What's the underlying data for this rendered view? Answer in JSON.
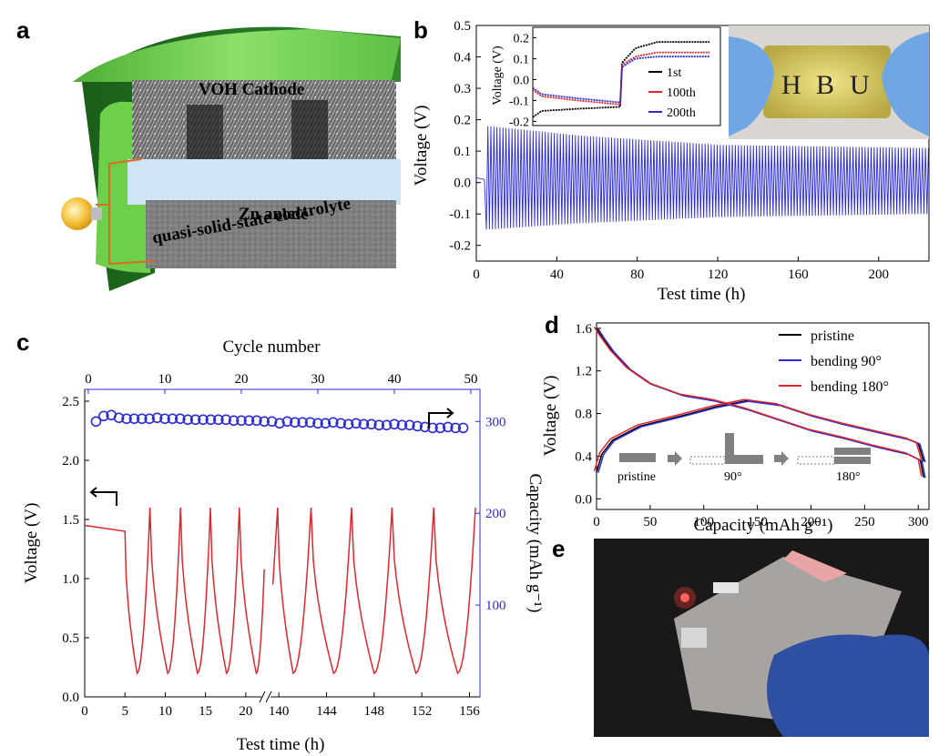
{
  "panels": {
    "a": "a",
    "b": "b",
    "c": "c",
    "d": "d",
    "e": "e"
  },
  "schematic": {
    "cathode_label": "VOH Cathode",
    "electrolyte_label": "quasi-solid-state electrolyte",
    "anode_label": "Zn anode"
  },
  "photo_b": {
    "letters": [
      "H",
      "B",
      "U"
    ]
  },
  "colors": {
    "blue": "#2b2bd6",
    "red": "#e0262e",
    "black": "#000000",
    "green": "#7bd55a",
    "gray_block": "#808080",
    "axis_blue": "#1c1cb0"
  },
  "chart_data": [
    {
      "id": "b-main",
      "type": "line",
      "xlabel": "Test time (h)",
      "ylabel": "Voltage (V)",
      "xlim": [
        0,
        225
      ],
      "ylim": [
        -0.25,
        0.5
      ],
      "xticks": [
        0,
        40,
        80,
        120,
        160,
        200
      ],
      "yticks": [
        -0.2,
        -0.1,
        0.0,
        0.1,
        0.2,
        0.3,
        0.4,
        0.5
      ],
      "xticklabels": [
        "0",
        "40",
        "80",
        "120",
        "160",
        "200"
      ],
      "yticklabels": [
        "-0.2",
        "-0.1",
        "0.0",
        "0.1",
        "0.2",
        "0.3",
        "0.4",
        "0.5"
      ],
      "series": [
        {
          "color": "#2b2bd6",
          "cycle_period_h": 1.5,
          "upper_envelope": [
            [
              5,
              0.18
            ],
            [
              50,
              0.15
            ],
            [
              120,
              0.12
            ],
            [
              225,
              0.11
            ]
          ],
          "lower_envelope": [
            [
              5,
              -0.15
            ],
            [
              50,
              -0.13
            ],
            [
              120,
              -0.11
            ],
            [
              225,
              -0.1
            ]
          ]
        }
      ],
      "grid": false
    },
    {
      "id": "b-inset",
      "type": "line",
      "ylabel": "Voltage (V)",
      "ylim": [
        -0.22,
        0.25
      ],
      "yticks": [
        -0.2,
        -0.1,
        0.0,
        0.1,
        0.2
      ],
      "yticklabels": [
        "-0.2",
        "-0.1",
        "0.0",
        "0.1",
        "0.2"
      ],
      "legend_position": "bottom-right",
      "series": [
        {
          "name": "1st",
          "color": "#000000",
          "discharge": [
            [
              0,
              -0.18
            ],
            [
              0.1,
              -0.15
            ],
            [
              0.5,
              -0.14
            ],
            [
              1.0,
              -0.13
            ]
          ],
          "charge": [
            [
              1.0,
              0.08
            ],
            [
              1.15,
              0.15
            ],
            [
              1.4,
              0.18
            ],
            [
              2.0,
              0.18
            ]
          ]
        },
        {
          "name": "100th",
          "color": "#e0262e",
          "discharge": [
            [
              0,
              -0.05
            ],
            [
              0.1,
              -0.08
            ],
            [
              0.5,
              -0.1
            ],
            [
              1.0,
              -0.12
            ]
          ],
          "charge": [
            [
              1.0,
              0.07
            ],
            [
              1.15,
              0.11
            ],
            [
              1.4,
              0.13
            ],
            [
              2.0,
              0.13
            ]
          ]
        },
        {
          "name": "200th",
          "color": "#2b2bd6",
          "discharge": [
            [
              0,
              -0.04
            ],
            [
              0.1,
              -0.07
            ],
            [
              0.5,
              -0.09
            ],
            [
              1.0,
              -0.11
            ]
          ],
          "charge": [
            [
              1.0,
              0.06
            ],
            [
              1.15,
              0.1
            ],
            [
              1.4,
              0.11
            ],
            [
              2.0,
              0.11
            ]
          ]
        }
      ]
    },
    {
      "id": "c",
      "type": "line",
      "xlabel": "Test time (h)",
      "x2label": "Cycle number",
      "ylabel": "Voltage (V)",
      "y2label": "Capacity (mAh g⁻¹)",
      "xticklabels": [
        "0",
        "5",
        "10",
        "15",
        "20",
        "140",
        "144",
        "148",
        "152",
        "156"
      ],
      "x2ticks": [
        0,
        10,
        20,
        30,
        40,
        50
      ],
      "yticks": [
        0.0,
        0.5,
        1.0,
        1.5,
        2.0,
        2.5
      ],
      "yticklabels": [
        "0.0",
        "0.5",
        "1.0",
        "1.5",
        "2.0",
        "2.5"
      ],
      "y2ticks": [
        100,
        200,
        300
      ],
      "ylim": [
        0,
        2.6
      ],
      "y2lim": [
        0,
        335
      ],
      "voltage_series": {
        "color": "#e0262e",
        "ocv_value": 1.45,
        "ocv_end_h": 5,
        "max_v": 1.6,
        "min_v": 0.2
      },
      "capacity_series": {
        "color": "#2b2bd6",
        "cycles": [
          1,
          2,
          3,
          4,
          5,
          6,
          7,
          8,
          9,
          10,
          11,
          12,
          13,
          14,
          15,
          16,
          17,
          18,
          19,
          20,
          21,
          22,
          23,
          24,
          25,
          26,
          27,
          28,
          29,
          30,
          31,
          32,
          33,
          34,
          35,
          36,
          37,
          38,
          39,
          40,
          41,
          42,
          43,
          44,
          45,
          46,
          47,
          48,
          49
        ],
        "values": [
          300,
          306,
          307,
          304,
          303,
          303,
          303,
          303,
          304,
          303,
          303,
          303,
          302,
          302,
          302,
          302,
          302,
          302,
          301,
          301,
          301,
          301,
          300,
          300,
          298,
          300,
          299,
          299,
          299,
          298,
          298,
          299,
          298,
          297,
          298,
          297,
          297,
          296,
          296,
          297,
          296,
          296,
          295,
          294,
          293,
          293,
          294,
          293,
          293
        ]
      },
      "grid": false
    },
    {
      "id": "d",
      "type": "line",
      "xlabel": "Capacity (mAh g⁻¹)",
      "ylabel": "Voltage (V)",
      "xlim": [
        0,
        310
      ],
      "ylim": [
        -0.1,
        1.65
      ],
      "xticks": [
        0,
        50,
        100,
        150,
        200,
        250,
        300
      ],
      "xticklabels": [
        "0",
        "50",
        "100",
        "150",
        "200",
        "250",
        "300"
      ],
      "yticks": [
        0.0,
        0.4,
        0.8,
        1.2,
        1.6
      ],
      "yticklabels": [
        "0.0",
        "0.4",
        "0.8",
        "1.2",
        "1.6"
      ],
      "legend_position": "top-right",
      "series": [
        {
          "name": "pristine",
          "color": "#000000"
        },
        {
          "name": "bending 90°",
          "color": "#2b2bd6"
        },
        {
          "name": "bending 180°",
          "color": "#e0262e"
        }
      ],
      "charge_curve": [
        [
          0,
          0.25
        ],
        [
          5,
          0.42
        ],
        [
          15,
          0.55
        ],
        [
          40,
          0.68
        ],
        [
          80,
          0.78
        ],
        [
          110,
          0.86
        ],
        [
          140,
          0.92
        ],
        [
          170,
          0.88
        ],
        [
          200,
          0.78
        ],
        [
          230,
          0.7
        ],
        [
          260,
          0.63
        ],
        [
          290,
          0.56
        ],
        [
          300,
          0.52
        ],
        [
          305,
          0.35
        ]
      ],
      "discharge_curve": [
        [
          0,
          1.6
        ],
        [
          5,
          1.52
        ],
        [
          15,
          1.38
        ],
        [
          30,
          1.22
        ],
        [
          50,
          1.08
        ],
        [
          80,
          0.97
        ],
        [
          110,
          0.92
        ],
        [
          140,
          0.84
        ],
        [
          170,
          0.74
        ],
        [
          200,
          0.64
        ],
        [
          230,
          0.57
        ],
        [
          260,
          0.49
        ],
        [
          290,
          0.42
        ],
        [
          302,
          0.36
        ],
        [
          305,
          0.2
        ]
      ],
      "inset_labels": [
        "pristine",
        "90°",
        "180°"
      ],
      "grid": false
    }
  ]
}
